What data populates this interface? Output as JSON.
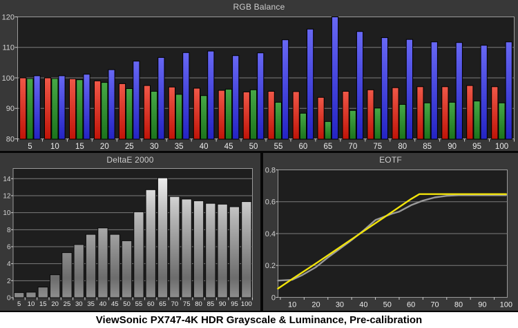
{
  "caption": "ViewSonic PX747-4K HDR Grayscale & Luminance, Pre-calibration",
  "chart_data": [
    {
      "id": "rgb_balance",
      "type": "bar",
      "title": "RGB Balance",
      "categories": [
        5,
        10,
        15,
        20,
        25,
        30,
        35,
        40,
        45,
        50,
        55,
        60,
        65,
        70,
        75,
        80,
        85,
        90,
        95,
        100
      ],
      "series": [
        {
          "name": "Red",
          "color": "#e03028",
          "gradient": [
            "#f05848",
            "#c01408"
          ],
          "values": [
            100,
            100,
            99.7,
            99.0,
            98.1,
            97.5,
            97.0,
            96.6,
            95.9,
            95.4,
            95.6,
            95.5,
            93.6,
            95.6,
            96.1,
            96.8,
            97.1,
            97.1,
            97.5,
            97.1
          ]
        },
        {
          "name": "Green",
          "color": "#2e8f2e",
          "gradient": [
            "#46a846",
            "#1c741c"
          ],
          "values": [
            99.8,
            99.8,
            99.4,
            98.5,
            96.5,
            95.6,
            94.6,
            94.2,
            96.3,
            96.1,
            92.0,
            88.4,
            85.7,
            89.3,
            90.1,
            91.3,
            91.8,
            92.0,
            92.4,
            91.8
          ]
        },
        {
          "name": "Blue",
          "color": "#3434dc",
          "gradient": [
            "#6868f4",
            "#2424c4"
          ],
          "values": [
            100.7,
            100.7,
            101.2,
            102.7,
            105.5,
            106.7,
            108.3,
            108.8,
            107.3,
            108.2,
            112.5,
            116.0,
            120.3,
            115.2,
            113.2,
            112.6,
            111.8,
            111.6,
            110.7,
            111.8
          ]
        }
      ],
      "xlabel": "",
      "ylabel": "",
      "ylim": [
        80,
        120
      ],
      "yticks": [
        80,
        90,
        100,
        110,
        120
      ],
      "ygrid": [
        90,
        100,
        110
      ],
      "grid": "on",
      "legend": "none"
    },
    {
      "id": "delta_e_2000",
      "type": "bar",
      "title": "DeltaE 2000",
      "categories": [
        5,
        10,
        15,
        20,
        25,
        30,
        35,
        40,
        45,
        50,
        55,
        60,
        65,
        70,
        75,
        80,
        85,
        90,
        95,
        100
      ],
      "values": [
        0.6,
        0.65,
        1.25,
        2.7,
        5.3,
        6.25,
        7.45,
        8.2,
        7.45,
        6.7,
        10.1,
        12.7,
        14.1,
        11.9,
        11.6,
        11.4,
        11.1,
        11.0,
        10.7,
        11.3
      ],
      "bar_gradient": [
        "#fbfbfb",
        "#b2b2b2",
        "#6c6c6c",
        "#8e8e8e"
      ],
      "xlabel": "",
      "ylabel": "",
      "ylim": [
        0,
        15.2
      ],
      "yticks": [
        0,
        2,
        4,
        6,
        8,
        10,
        12,
        14
      ],
      "ygrid": [
        2,
        4,
        6,
        8,
        10,
        12,
        14
      ],
      "grid": "on",
      "legend": "none"
    },
    {
      "id": "eotf",
      "type": "line",
      "title": "EOTF",
      "xlim": [
        4,
        100.5
      ],
      "ylim": [
        0,
        0.8
      ],
      "xticks": [
        10,
        20,
        30,
        40,
        50,
        60,
        70,
        80,
        90,
        100
      ],
      "yticks": [
        0,
        0.2,
        0.4,
        0.6,
        0.8
      ],
      "ygrid": [
        0.2,
        0.4,
        0.6
      ],
      "grid": "on",
      "legend": "none",
      "series": [
        {
          "name": "measured",
          "color": "#9a9a9a",
          "points": [
            [
              4,
              0.105
            ],
            [
              10,
              0.11
            ],
            [
              14,
              0.138
            ],
            [
              20,
              0.19
            ],
            [
              25,
              0.25
            ],
            [
              30,
              0.305
            ],
            [
              35,
              0.36
            ],
            [
              40,
              0.42
            ],
            [
              45,
              0.485
            ],
            [
              48,
              0.502
            ],
            [
              52,
              0.525
            ],
            [
              55,
              0.538
            ],
            [
              60,
              0.578
            ],
            [
              65,
              0.607
            ],
            [
              70,
              0.627
            ],
            [
              75,
              0.637
            ],
            [
              80,
              0.641
            ],
            [
              90,
              0.641
            ],
            [
              100,
              0.641
            ]
          ]
        },
        {
          "name": "target",
          "color": "#f2e40a",
          "points": [
            [
              4,
              0.055
            ],
            [
              10,
              0.115
            ],
            [
              20,
              0.213
            ],
            [
              30,
              0.314
            ],
            [
              40,
              0.415
            ],
            [
              50,
              0.516
            ],
            [
              60,
              0.617
            ],
            [
              63.5,
              0.648
            ],
            [
              100,
              0.648
            ]
          ]
        }
      ]
    }
  ]
}
